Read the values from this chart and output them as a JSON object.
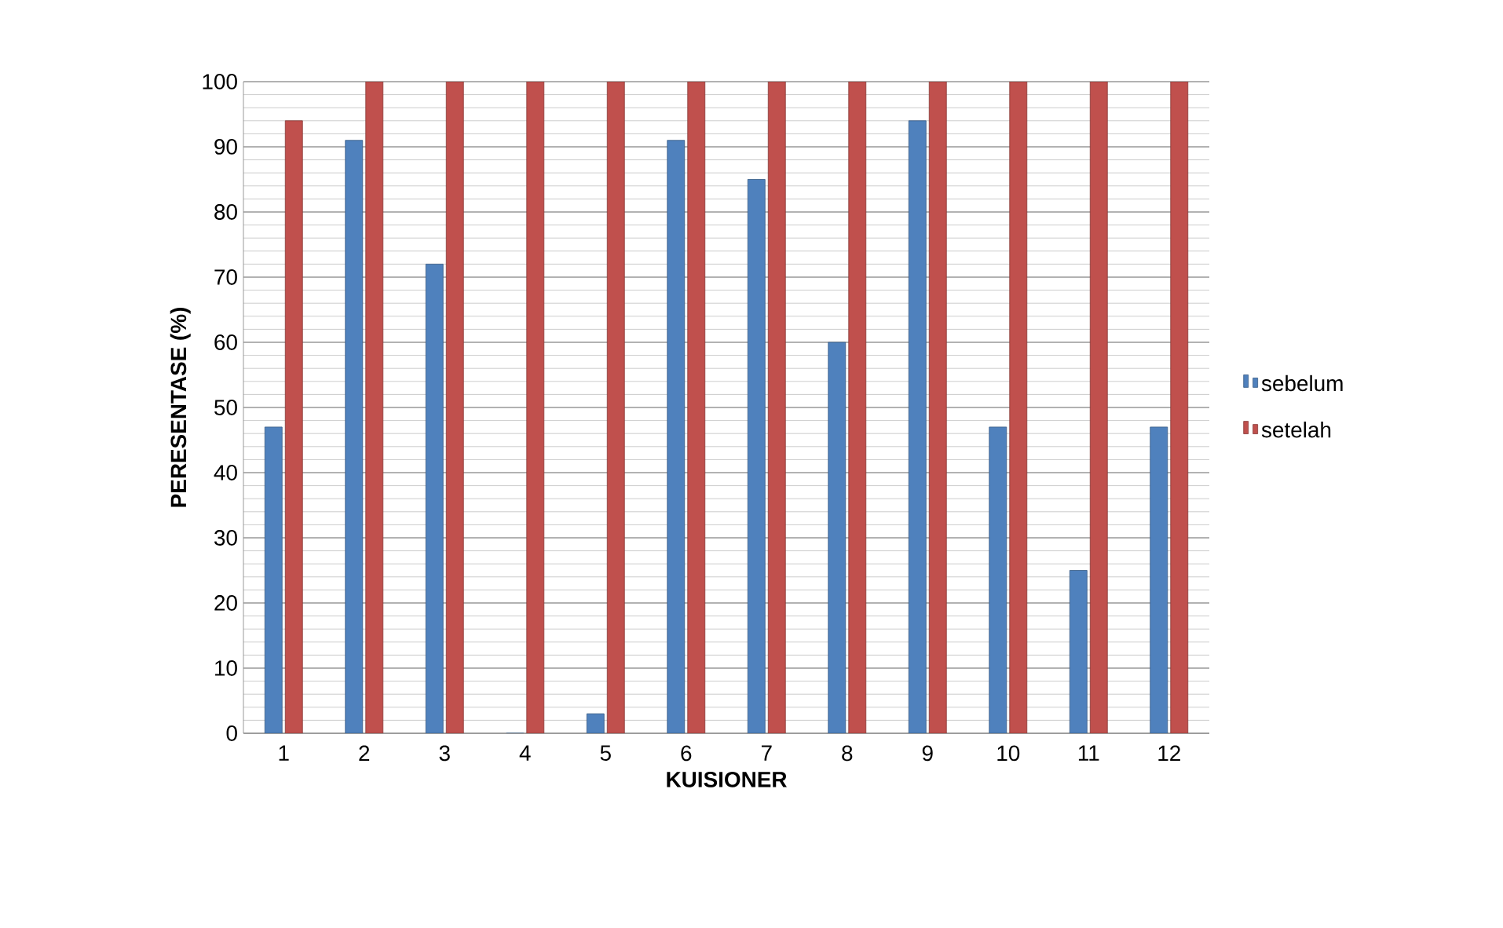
{
  "chart_data": {
    "type": "bar",
    "xlabel": "KUISIONER",
    "ylabel": "PERESENTASE (%)",
    "categories": [
      "1",
      "2",
      "3",
      "4",
      "5",
      "6",
      "7",
      "8",
      "9",
      "10",
      "11",
      "12"
    ],
    "series": [
      {
        "name": "sebelum",
        "color": "#4f81bd",
        "values": [
          47,
          91,
          72,
          0,
          3,
          91,
          85,
          60,
          94,
          47,
          25,
          47
        ]
      },
      {
        "name": "setelah",
        "color": "#c0504d",
        "values": [
          94,
          100,
          100,
          100,
          100,
          100,
          100,
          100,
          100,
          100,
          100,
          100
        ]
      }
    ],
    "ylim": [
      0,
      100
    ],
    "yticks": [
      0,
      10,
      20,
      30,
      40,
      50,
      60,
      70,
      80,
      90,
      100
    ],
    "grid": "y",
    "legend": "right"
  }
}
